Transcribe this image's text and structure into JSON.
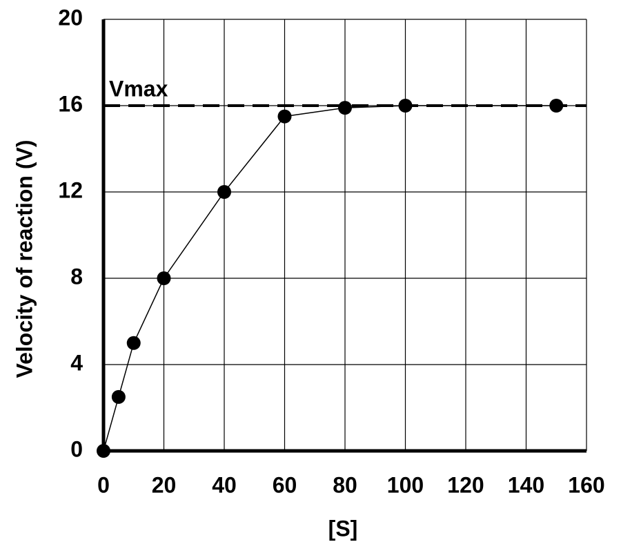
{
  "chart_data": {
    "type": "line",
    "x_label": "[S]",
    "y_label": "Velocity of reaction (V)",
    "x": [
      0,
      5,
      10,
      20,
      40,
      60,
      80,
      100,
      150
    ],
    "series": [
      {
        "color": "#000000",
        "values": [
          0,
          2.5,
          5,
          8,
          12,
          15.5,
          15.9,
          16,
          16
        ]
      }
    ],
    "reference_line": {
      "value": 16,
      "label": "Vmax"
    },
    "xlim": [
      0,
      160
    ],
    "xticks": [
      0,
      20,
      40,
      60,
      80,
      100,
      120,
      140,
      160
    ],
    "ylim": [
      0,
      20
    ],
    "yticks": [
      0,
      4,
      8,
      12,
      16,
      20
    ],
    "grid": true
  }
}
